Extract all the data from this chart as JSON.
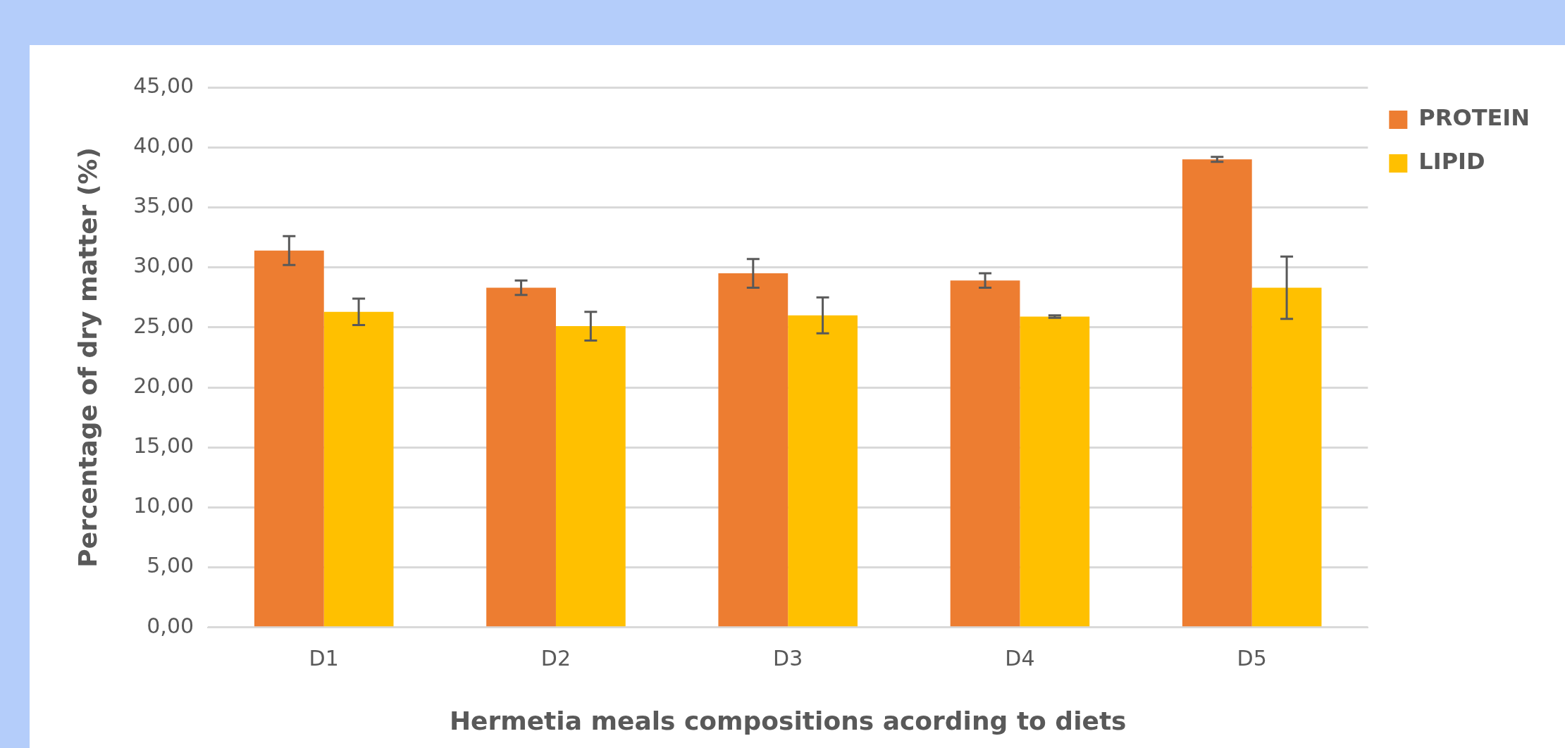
{
  "chart_data": {
    "type": "bar",
    "xlabel": "Hermetia meals compositions acording to diets",
    "ylabel": "Percentage of dry matter (%)",
    "categories": [
      "D1",
      "D2",
      "D3",
      "D4",
      "D5"
    ],
    "series": [
      {
        "name": "PROTEIN",
        "color": "#ed7d31",
        "values": [
          31.4,
          28.3,
          29.5,
          28.9,
          39.0
        ],
        "errors": [
          1.2,
          0.6,
          1.2,
          0.6,
          0.2
        ]
      },
      {
        "name": "LIPID",
        "color": "#ffc000",
        "values": [
          26.3,
          25.1,
          26.0,
          25.9,
          28.3
        ],
        "errors": [
          1.1,
          1.2,
          1.5,
          0.1,
          2.6
        ]
      }
    ],
    "ylim": [
      0,
      45
    ],
    "yticks": [
      {
        "value": 0,
        "label": "0,00"
      },
      {
        "value": 5,
        "label": "5,00"
      },
      {
        "value": 10,
        "label": "10,00"
      },
      {
        "value": 15,
        "label": "15,00"
      },
      {
        "value": 20,
        "label": "20,00"
      },
      {
        "value": 25,
        "label": "25,00"
      },
      {
        "value": 30,
        "label": "30,00"
      },
      {
        "value": 35,
        "label": "35,00"
      },
      {
        "value": 40,
        "label": "40,00"
      },
      {
        "value": 45,
        "label": "45,00"
      }
    ],
    "grid": "y",
    "legend": "right"
  }
}
